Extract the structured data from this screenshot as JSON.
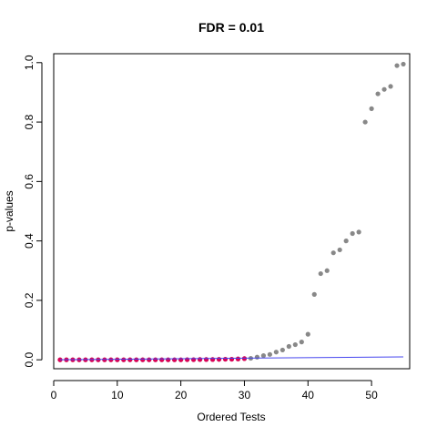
{
  "chart_data": {
    "type": "scatter",
    "title": "FDR = 0.01",
    "xlabel": "Ordered Tests",
    "ylabel": "p-values",
    "xlim": [
      0,
      56
    ],
    "ylim": [
      -0.03,
      1.03
    ],
    "x_ticks": [
      0,
      10,
      20,
      30,
      40,
      50
    ],
    "y_ticks": [
      0.0,
      0.2,
      0.4,
      0.6,
      0.8,
      1.0
    ],
    "x_tick_labels": [
      "0",
      "10",
      "20",
      "30",
      "40",
      "50"
    ],
    "y_tick_labels": [
      "0.0",
      "0.2",
      "0.4",
      "0.6",
      "0.8",
      "1.0"
    ],
    "grid": false,
    "n_tests": 55,
    "fdr_level": 0.01,
    "series": [
      {
        "kind": "points",
        "color": "#888888",
        "x": [
          1,
          2,
          3,
          4,
          5,
          6,
          7,
          8,
          9,
          10,
          11,
          12,
          13,
          14,
          15,
          16,
          17,
          18,
          19,
          20,
          21,
          22,
          23,
          24,
          25,
          26,
          27,
          28,
          29,
          30,
          31,
          32,
          33,
          34,
          35,
          36,
          37,
          38,
          39,
          40,
          41,
          42,
          43,
          44,
          45,
          46,
          47,
          48,
          49,
          50,
          51,
          52,
          53,
          54,
          55
        ],
        "values": [
          0.0,
          0.0,
          0.0,
          0.0,
          0.0,
          0.0,
          0.0,
          0.0,
          0.0,
          0.0,
          0.0,
          0.0,
          0.0,
          0.0,
          0.0,
          0.0,
          0.0,
          0.0,
          0.0,
          0.0,
          0.0005,
          0.0005,
          0.001,
          0.001,
          0.001,
          0.0015,
          0.002,
          0.002,
          0.003,
          0.004,
          0.005,
          0.009,
          0.014,
          0.018,
          0.026,
          0.033,
          0.045,
          0.051,
          0.06,
          0.086,
          0.22,
          0.29,
          0.3,
          0.36,
          0.37,
          0.4,
          0.425,
          0.43,
          0.8,
          0.845,
          0.895,
          0.91,
          0.92,
          0.99,
          0.995
        ]
      },
      {
        "kind": "points",
        "color": "#dd0055",
        "x": [
          1,
          2,
          3,
          4,
          5,
          6,
          7,
          8,
          9,
          10,
          11,
          12,
          13,
          14,
          15,
          16,
          17,
          18,
          19,
          20,
          21,
          22,
          23,
          24,
          25,
          26,
          27,
          28,
          29,
          30
        ],
        "values": [
          0.0,
          0.0,
          0.0,
          0.0,
          0.0,
          0.0,
          0.0,
          0.0,
          0.0,
          0.0,
          0.0,
          0.0,
          0.0,
          0.0,
          0.0,
          0.0,
          0.0,
          0.0,
          0.0,
          0.0,
          0.0005,
          0.0005,
          0.001,
          0.001,
          0.001,
          0.0015,
          0.002,
          0.002,
          0.003,
          0.004
        ]
      },
      {
        "kind": "line",
        "color": "#4444ee",
        "x": [
          1,
          55
        ],
        "values": [
          0.00018,
          0.01
        ]
      }
    ]
  }
}
